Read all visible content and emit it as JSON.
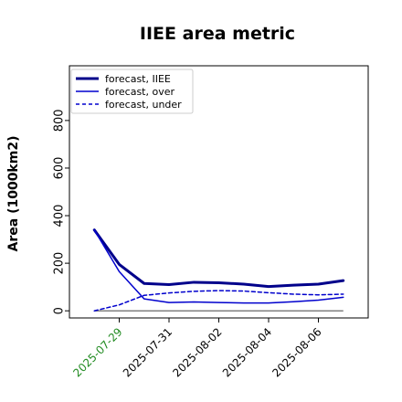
{
  "chart_data": {
    "type": "line",
    "title": "IIEE area metric",
    "xlabel": "",
    "ylabel": "Area (1000km2)",
    "x": [
      "2025-07-28",
      "2025-07-29",
      "2025-07-30",
      "2025-07-31",
      "2025-08-01",
      "2025-08-02",
      "2025-08-03",
      "2025-08-04",
      "2025-08-05",
      "2025-08-06",
      "2025-08-07"
    ],
    "xticks": [
      "2025-07-29",
      "2025-07-31",
      "2025-08-02",
      "2025-08-04",
      "2025-08-06"
    ],
    "xtick_colors": [
      "#228b22",
      "#000000",
      "#000000",
      "#000000",
      "#000000"
    ],
    "xlim": [
      "2025-07-27",
      "2025-08-08"
    ],
    "yticks": [
      0,
      200,
      400,
      600,
      800
    ],
    "ylim": [
      -30,
      1030
    ],
    "grid": false,
    "legend_position": "top-left",
    "series": [
      {
        "name": "forecast, IIEE",
        "style": "solid",
        "width": 3,
        "color": "#00008b",
        "values": [
          340,
          195,
          115,
          110,
          120,
          118,
          112,
          102,
          108,
          112,
          127
        ]
      },
      {
        "name": "forecast, over",
        "style": "solid",
        "width": 1.5,
        "color": "#0000cd",
        "values": [
          340,
          165,
          50,
          35,
          37,
          35,
          33,
          33,
          38,
          45,
          57
        ]
      },
      {
        "name": "forecast, under",
        "style": "dashed",
        "width": 1.5,
        "color": "#0000cd",
        "values": [
          0,
          25,
          65,
          75,
          82,
          85,
          83,
          76,
          70,
          67,
          70
        ]
      }
    ],
    "baseline": {
      "value": 0,
      "color": "#808080"
    }
  }
}
